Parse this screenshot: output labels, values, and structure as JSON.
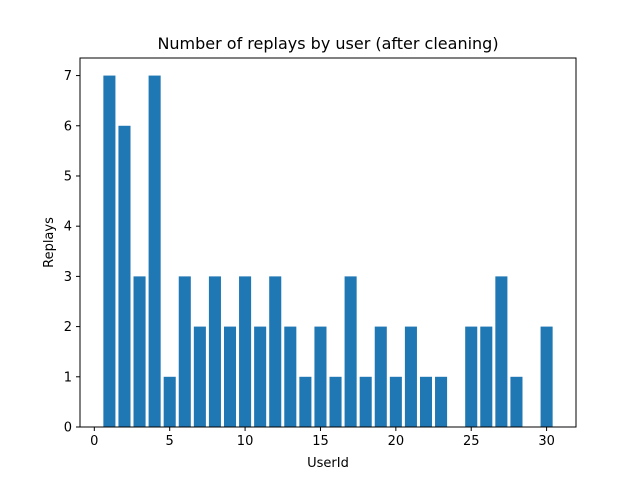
{
  "chart_data": {
    "type": "bar",
    "title": "Number of replays by user (after cleaning)",
    "xlabel": "UserId",
    "ylabel": "Replays",
    "x": [
      1,
      2,
      3,
      4,
      5,
      6,
      7,
      8,
      9,
      10,
      11,
      12,
      13,
      14,
      15,
      16,
      17,
      18,
      19,
      20,
      21,
      22,
      23,
      25,
      26,
      27,
      28,
      30
    ],
    "values": [
      7,
      6,
      3,
      7,
      1,
      3,
      2,
      3,
      2,
      3,
      2,
      3,
      2,
      1,
      2,
      1,
      3,
      1,
      2,
      1,
      2,
      1,
      1,
      2,
      2,
      3,
      1,
      2
    ],
    "xlim": [
      -0.95,
      31.95
    ],
    "ylim": [
      0,
      7.35
    ],
    "xticks": [
      0,
      5,
      10,
      15,
      20,
      25,
      30
    ],
    "yticks": [
      0,
      1,
      2,
      3,
      4,
      5,
      6,
      7
    ],
    "bar_color": "#1f77b4",
    "grid": false,
    "legend": "none"
  }
}
